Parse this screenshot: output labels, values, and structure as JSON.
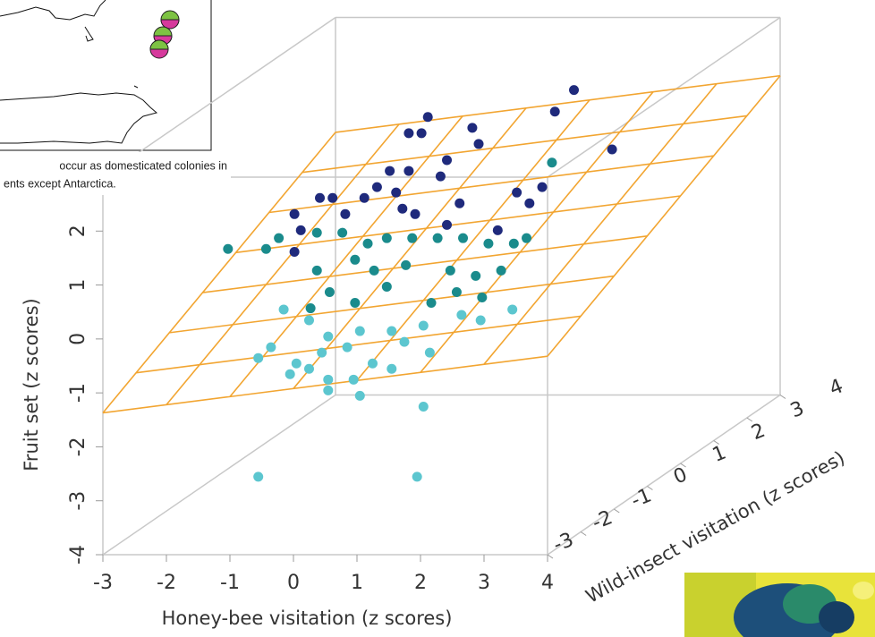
{
  "chart_data": {
    "type": "scatter3d",
    "xlabel": "Honey-bee visitation (z scores)",
    "ylabel": "Fruit set (z scores)",
    "wlabel": "Wild-insect visitation (z scores)",
    "xlim": [
      -3,
      4
    ],
    "xticks": [
      -3,
      -2,
      -1,
      0,
      1,
      2,
      3,
      4
    ],
    "ylim": [
      -4,
      3
    ],
    "yticks": [
      -4,
      -3,
      -2,
      -1,
      0,
      1,
      2
    ],
    "wlim": [
      -3,
      4
    ],
    "wticks": [
      -3,
      -2,
      -1,
      0,
      1,
      2,
      3,
      4
    ],
    "surface": {
      "intercept": 0.04,
      "slope_x": 0.15,
      "slope_w": 0.32,
      "color": "#f2a531"
    },
    "series": [
      {
        "color": "#1f2a7c",
        "x": [
          1.8,
          1.5,
          2.4,
          0.2,
          -0.5,
          -0.8,
          -0.6,
          0.3,
          -1.1,
          -0.8,
          -0.3,
          -0.2,
          -1.3,
          -2.0,
          -1.8,
          -2.2,
          -2.6,
          -2.5,
          -2.6,
          -1.5,
          -0.9,
          -0.7,
          0.0,
          0.9,
          1.3,
          1.1,
          0.6,
          -0.2,
          -1.0
        ],
        "w": [
          2,
          2,
          2,
          2,
          2,
          2,
          2,
          2,
          2,
          2,
          2,
          2,
          2,
          2,
          2,
          2,
          2,
          2,
          2,
          2,
          2,
          2,
          2,
          2,
          2,
          2,
          2,
          2,
          2
        ],
        "values": [
          2.5,
          2.1,
          1.4,
          1.8,
          2.0,
          1.7,
          1.7,
          1.5,
          1.0,
          1.0,
          0.9,
          1.2,
          0.7,
          0.5,
          0.2,
          0.5,
          0.2,
          -0.1,
          -0.5,
          0.5,
          0.3,
          0.2,
          0.4,
          0.6,
          0.7,
          0.4,
          -0.1,
          0.0,
          0.6
        ]
      },
      {
        "color": "#1a8b8c",
        "x": [
          2.5,
          -2.6,
          -2.0,
          -1.8,
          -1.2,
          -0.8,
          -0.4,
          -0.1,
          0.3,
          0.7,
          1.1,
          1.5,
          1.9,
          2.1,
          -1.2,
          -0.6,
          -0.3,
          0.2,
          0.9,
          1.3,
          1.7,
          -1.0,
          -0.1,
          1.0,
          -1.3,
          -0.6,
          0.6,
          1.4
        ],
        "w": [
          0,
          0,
          0,
          0,
          0,
          0,
          0,
          0,
          0,
          0,
          0,
          0,
          0,
          0,
          0,
          0,
          0,
          0,
          0,
          0,
          0,
          0,
          0,
          0,
          0,
          0,
          0,
          0
        ],
        "values": [
          2.0,
          0.4,
          0.4,
          0.6,
          0.7,
          0.7,
          0.5,
          0.6,
          0.6,
          0.6,
          0.6,
          0.5,
          0.5,
          0.6,
          0.0,
          0.2,
          0.0,
          0.1,
          0.0,
          -0.1,
          0.0,
          -0.4,
          -0.3,
          -0.4,
          -0.7,
          -0.6,
          -0.6,
          -0.5
        ]
      },
      {
        "color": "#5cc6cf",
        "x": [
          -1.2,
          -0.8,
          -0.5,
          0.0,
          0.5,
          1.0,
          1.6,
          2.4,
          -1.4,
          -1.0,
          -0.6,
          -0.2,
          0.2,
          0.7,
          1.1,
          -1.6,
          -1.1,
          -0.8,
          -0.5,
          -0.1,
          0.5,
          -0.5,
          0.0,
          1.0,
          -1.6,
          0.9,
          1.9
        ],
        "w": [
          -1,
          -1,
          -1,
          -1,
          -1,
          -1,
          -1,
          -1,
          -1,
          -1,
          -1,
          -1,
          -1,
          -1,
          -1,
          -1,
          -1,
          -1,
          -1,
          -1,
          -1,
          -1,
          -1,
          -1,
          -1,
          -1,
          -1
        ],
        "values": [
          -0.3,
          -0.5,
          -0.8,
          -0.7,
          -0.7,
          -0.6,
          -0.4,
          -0.3,
          -1.0,
          -1.3,
          -1.1,
          -1.0,
          -1.3,
          -0.9,
          -1.1,
          -1.2,
          -1.5,
          -1.4,
          -1.6,
          -1.6,
          -1.4,
          -1.8,
          -1.9,
          -2.1,
          -3.4,
          -3.4,
          -0.5
        ]
      }
    ]
  },
  "caption": [
    "occur as domesticated colonies in",
    "ents except Antarctica."
  ]
}
